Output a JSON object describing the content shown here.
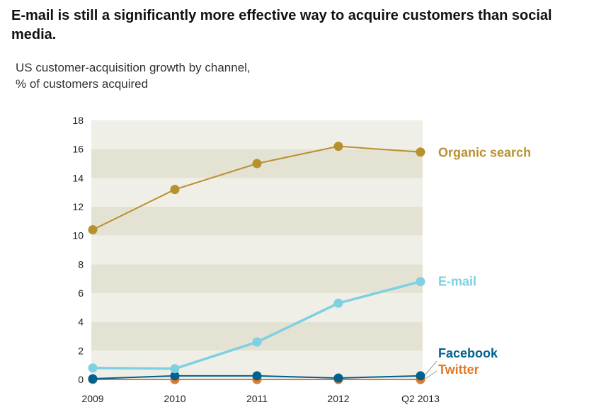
{
  "title": "E-mail is still a significantly more effective way to acquire customers than social media.",
  "subtitle_line1": "US customer-acquisition growth by channel,",
  "subtitle_line2": "% of customers acquired",
  "chart_data": {
    "type": "line",
    "categories": [
      "2009",
      "2010",
      "2011",
      "2012",
      "Q2 2013"
    ],
    "ylim": [
      0,
      18
    ],
    "yticks": [
      0,
      2,
      4,
      6,
      8,
      10,
      12,
      14,
      16,
      18
    ],
    "grid": "alternating horizontal bands",
    "legend": "right (direct labels)",
    "series": [
      {
        "name": "Organic search",
        "color": "#b8912f",
        "values": [
          10.4,
          13.2,
          15.0,
          16.2,
          15.8
        ]
      },
      {
        "name": "E-mail",
        "color": "#7fd0e2",
        "values": [
          0.8,
          0.75,
          2.6,
          5.3,
          6.8
        ]
      },
      {
        "name": "Facebook",
        "color": "#00608f",
        "values": [
          0.05,
          0.25,
          0.25,
          0.1,
          0.25
        ]
      },
      {
        "name": "Twitter",
        "color": "#e07a2c",
        "values": [
          0.0,
          0.0,
          0.0,
          0.0,
          0.0
        ]
      }
    ]
  }
}
